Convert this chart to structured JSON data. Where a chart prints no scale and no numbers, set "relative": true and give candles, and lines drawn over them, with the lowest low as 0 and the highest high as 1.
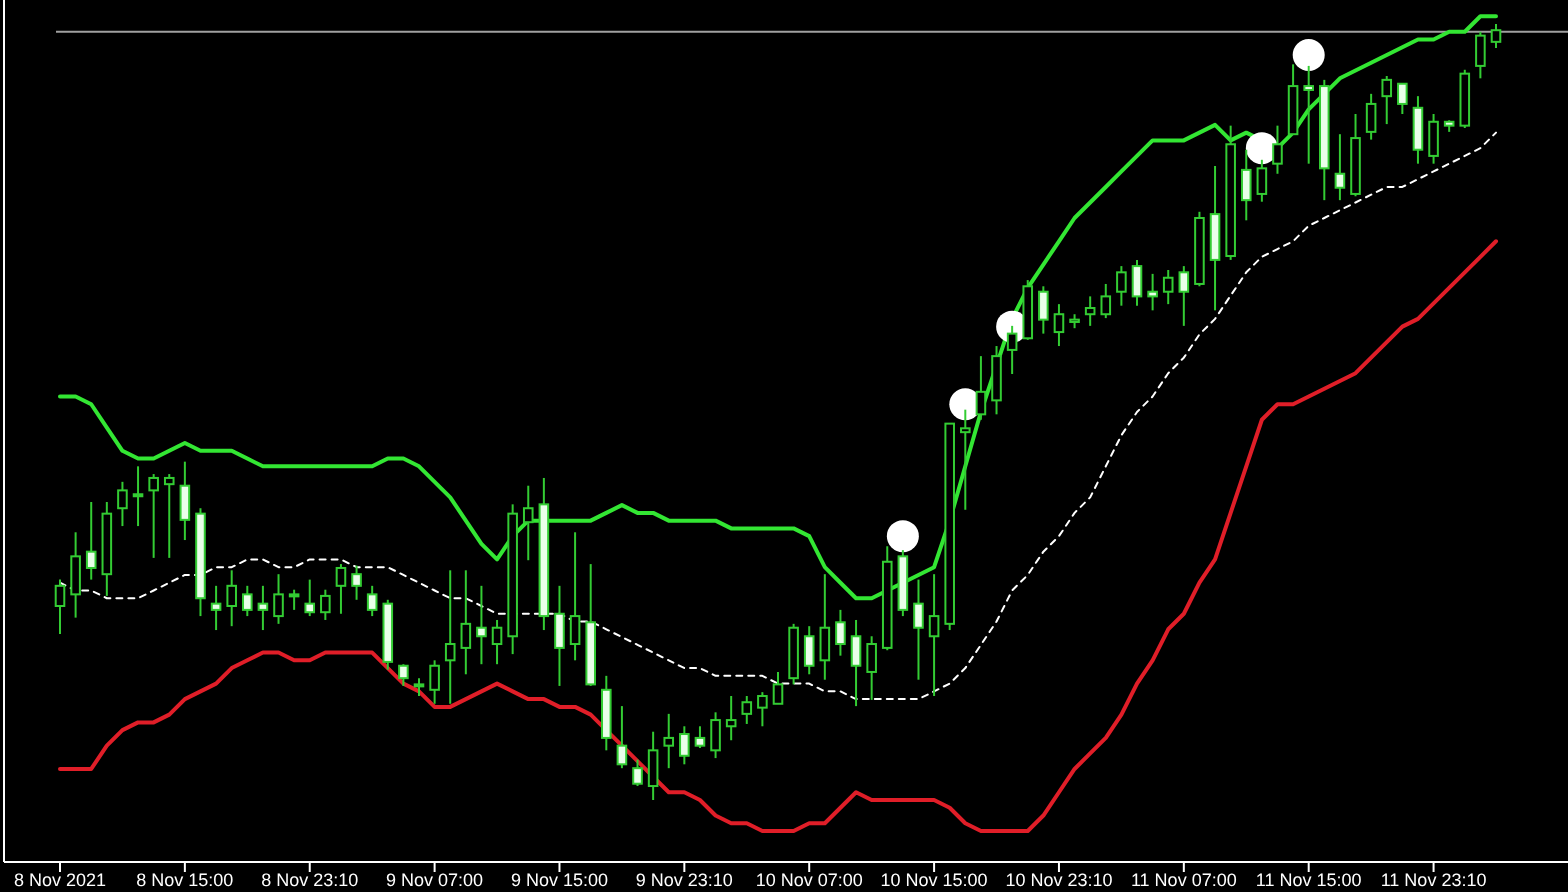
{
  "chart_data": {
    "type": "candlestick",
    "relative": true,
    "color": "#33cc33",
    "categories": [
      "8 Nov 2021",
      null,
      null,
      null,
      null,
      null,
      null,
      null,
      "8 Nov 15:00",
      null,
      null,
      null,
      null,
      null,
      null,
      null,
      "8 Nov 23:10",
      null,
      null,
      null,
      null,
      null,
      null,
      null,
      "9 Nov 07:00",
      null,
      null,
      null,
      null,
      null,
      null,
      null,
      "9 Nov 15:00",
      null,
      null,
      null,
      null,
      null,
      null,
      null,
      "9 Nov 23:10",
      null,
      null,
      null,
      null,
      null,
      null,
      null,
      "10 Nov 07:00",
      null,
      null,
      null,
      null,
      null,
      null,
      null,
      "10 Nov 15:00",
      null,
      null,
      null,
      null,
      null,
      null,
      null,
      "10 Nov 23:10",
      null,
      null,
      null,
      null,
      null,
      null,
      null,
      "11 Nov 07:00",
      null,
      null,
      null,
      null,
      null,
      null,
      null,
      "11 Nov 15:00",
      null,
      null,
      null,
      null,
      null,
      null,
      null,
      "11 Nov 23:10",
      null,
      null,
      null,
      null
    ],
    "ohlc": [
      [
        0.25,
        0.284,
        0.214,
        0.276
      ],
      [
        0.265,
        0.345,
        0.235,
        0.314
      ],
      [
        0.32,
        0.384,
        0.284,
        0.299
      ],
      [
        0.291,
        0.384,
        0.263,
        0.369
      ],
      [
        0.376,
        0.41,
        0.353,
        0.399
      ],
      [
        0.392,
        0.43,
        0.353,
        0.394
      ],
      [
        0.399,
        0.42,
        0.312,
        0.415
      ],
      [
        0.407,
        0.42,
        0.312,
        0.415
      ],
      [
        0.405,
        0.436,
        0.335,
        0.361
      ],
      [
        0.369,
        0.376,
        0.237,
        0.26
      ],
      [
        0.253,
        0.276,
        0.219,
        0.245
      ],
      [
        0.25,
        0.296,
        0.224,
        0.276
      ],
      [
        0.265,
        0.276,
        0.237,
        0.245
      ],
      [
        0.253,
        0.276,
        0.219,
        0.245
      ],
      [
        0.237,
        0.291,
        0.227,
        0.265
      ],
      [
        0.263,
        0.271,
        0.245,
        0.265
      ],
      [
        0.253,
        0.284,
        0.237,
        0.242
      ],
      [
        0.242,
        0.271,
        0.232,
        0.263
      ],
      [
        0.276,
        0.304,
        0.24,
        0.299
      ],
      [
        0.291,
        0.302,
        0.258,
        0.276
      ],
      [
        0.265,
        0.276,
        0.237,
        0.245
      ],
      [
        0.253,
        0.258,
        0.168,
        0.178
      ],
      [
        0.173,
        0.175,
        0.147,
        0.157
      ],
      [
        0.147,
        0.157,
        0.134,
        0.149
      ],
      [
        0.142,
        0.18,
        0.124,
        0.173
      ],
      [
        0.18,
        0.296,
        0.124,
        0.201
      ],
      [
        0.196,
        0.296,
        0.162,
        0.227
      ],
      [
        0.222,
        0.276,
        0.175,
        0.211
      ],
      [
        0.201,
        0.232,
        0.175,
        0.222
      ],
      [
        0.211,
        0.381,
        0.188,
        0.369
      ],
      [
        0.358,
        0.405,
        0.309,
        0.376
      ],
      [
        0.381,
        0.415,
        0.219,
        0.237
      ],
      [
        0.24,
        0.276,
        0.147,
        0.196
      ],
      [
        0.201,
        0.345,
        0.18,
        0.237
      ],
      [
        0.229,
        0.304,
        0.147,
        0.149
      ],
      [
        0.142,
        0.16,
        0.064,
        0.08
      ],
      [
        0.07,
        0.121,
        0.041,
        0.046
      ],
      [
        0.041,
        0.052,
        0.018,
        0.021
      ],
      [
        0.018,
        0.088,
        0,
        0.064
      ],
      [
        0.07,
        0.111,
        0.041,
        0.08
      ],
      [
        0.085,
        0.095,
        0.046,
        0.057
      ],
      [
        0.08,
        0.095,
        0.067,
        0.07
      ],
      [
        0.064,
        0.113,
        0.054,
        0.103
      ],
      [
        0.095,
        0.134,
        0.077,
        0.103
      ],
      [
        0.111,
        0.134,
        0.098,
        0.126
      ],
      [
        0.119,
        0.139,
        0.095,
        0.134
      ],
      [
        0.124,
        0.165,
        0.124,
        0.149
      ],
      [
        0.157,
        0.227,
        0.149,
        0.222
      ],
      [
        0.211,
        0.224,
        0.162,
        0.173
      ],
      [
        0.18,
        0.291,
        0.155,
        0.222
      ],
      [
        0.229,
        0.245,
        0.186,
        0.201
      ],
      [
        0.211,
        0.232,
        0.121,
        0.173
      ],
      [
        0.165,
        0.211,
        0.129,
        0.201
      ],
      [
        0.196,
        0.327,
        0.193,
        0.307
      ],
      [
        0.314,
        0.322,
        0.237,
        0.245
      ],
      [
        0.253,
        0.284,
        0.155,
        0.222
      ],
      [
        0.211,
        0.291,
        0.134,
        0.237
      ],
      [
        0.227,
        0.485,
        0.219,
        0.485
      ],
      [
        0.474,
        0.503,
        0.374,
        0.479
      ],
      [
        0.497,
        0.572,
        0.49,
        0.526
      ],
      [
        0.515,
        0.585,
        0.497,
        0.572
      ],
      [
        0.58,
        0.611,
        0.549,
        0.601
      ],
      [
        0.595,
        0.67,
        0.593,
        0.662
      ],
      [
        0.655,
        0.662,
        0.601,
        0.619
      ],
      [
        0.603,
        0.639,
        0.585,
        0.626
      ],
      [
        0.616,
        0.626,
        0.608,
        0.619
      ],
      [
        0.626,
        0.649,
        0.611,
        0.634
      ],
      [
        0.626,
        0.665,
        0.621,
        0.649
      ],
      [
        0.655,
        0.688,
        0.637,
        0.68
      ],
      [
        0.688,
        0.696,
        0.637,
        0.649
      ],
      [
        0.655,
        0.678,
        0.631,
        0.649
      ],
      [
        0.655,
        0.683,
        0.639,
        0.673
      ],
      [
        0.68,
        0.688,
        0.611,
        0.655
      ],
      [
        0.665,
        0.758,
        0.662,
        0.75
      ],
      [
        0.755,
        0.817,
        0.631,
        0.696
      ],
      [
        0.701,
        0.869,
        0.696,
        0.845
      ],
      [
        0.812,
        0.838,
        0.747,
        0.773
      ],
      [
        0.781,
        0.825,
        0.771,
        0.814
      ],
      [
        0.82,
        0.869,
        0.807,
        0.845
      ],
      [
        0.858,
        0.948,
        0.858,
        0.92
      ],
      [
        0.92,
        0.946,
        0.82,
        0.915
      ],
      [
        0.92,
        0.928,
        0.773,
        0.814
      ],
      [
        0.807,
        0.858,
        0.773,
        0.789
      ],
      [
        0.781,
        0.884,
        0.778,
        0.853
      ],
      [
        0.861,
        0.91,
        0.851,
        0.897
      ],
      [
        0.907,
        0.933,
        0.871,
        0.928
      ],
      [
        0.923,
        0.923,
        0.884,
        0.897
      ],
      [
        0.892,
        0.907,
        0.82,
        0.838
      ],
      [
        0.83,
        0.884,
        0.82,
        0.874
      ],
      [
        0.874,
        0.876,
        0.861,
        0.869
      ],
      [
        0.869,
        0.941,
        0.866,
        0.936
      ],
      [
        0.946,
        0.99,
        0.93,
        0.985
      ],
      [
        0.977,
        1,
        0.969,
        0.992
      ]
    ],
    "series": [
      {
        "type": "line",
        "color": "#33e633",
        "line_style": "solid",
        "values": [
          0.52,
          0.52,
          0.51,
          0.48,
          0.45,
          0.44,
          0.44,
          0.45,
          0.46,
          0.45,
          0.45,
          0.45,
          0.44,
          0.43,
          0.43,
          0.43,
          0.43,
          0.43,
          0.43,
          0.43,
          0.43,
          0.44,
          0.44,
          0.43,
          0.41,
          0.39,
          0.36,
          0.33,
          0.31,
          0.34,
          0.36,
          0.36,
          0.36,
          0.36,
          0.36,
          0.37,
          0.38,
          0.37,
          0.37,
          0.36,
          0.36,
          0.36,
          0.36,
          0.35,
          0.35,
          0.35,
          0.35,
          0.35,
          0.34,
          0.3,
          0.28,
          0.26,
          0.26,
          0.27,
          0.28,
          0.29,
          0.3,
          0.36,
          0.43,
          0.5,
          0.56,
          0.62,
          0.66,
          0.69,
          0.72,
          0.75,
          0.77,
          0.79,
          0.81,
          0.83,
          0.85,
          0.85,
          0.85,
          0.86,
          0.87,
          0.85,
          0.86,
          0.85,
          0.84,
          0.86,
          0.89,
          0.91,
          0.93,
          0.94,
          0.95,
          0.96,
          0.97,
          0.98,
          0.98,
          0.99,
          0.99,
          1.01,
          1.01
        ]
      },
      {
        "type": "line",
        "color": "#ffffff",
        "line_style": "dashed",
        "values": [
          0.28,
          0.27,
          0.27,
          0.26,
          0.26,
          0.26,
          0.27,
          0.28,
          0.29,
          0.29,
          0.3,
          0.3,
          0.31,
          0.31,
          0.3,
          0.3,
          0.31,
          0.31,
          0.31,
          0.3,
          0.3,
          0.3,
          0.29,
          0.28,
          0.27,
          0.26,
          0.26,
          0.25,
          0.24,
          0.24,
          0.24,
          0.24,
          0.24,
          0.23,
          0.23,
          0.22,
          0.21,
          0.2,
          0.19,
          0.18,
          0.17,
          0.17,
          0.16,
          0.16,
          0.16,
          0.16,
          0.15,
          0.15,
          0.15,
          0.14,
          0.14,
          0.13,
          0.13,
          0.13,
          0.13,
          0.13,
          0.14,
          0.15,
          0.17,
          0.2,
          0.23,
          0.27,
          0.29,
          0.32,
          0.34,
          0.37,
          0.39,
          0.43,
          0.47,
          0.5,
          0.52,
          0.55,
          0.57,
          0.6,
          0.62,
          0.65,
          0.68,
          0.7,
          0.71,
          0.72,
          0.74,
          0.75,
          0.76,
          0.77,
          0.78,
          0.79,
          0.79,
          0.8,
          0.81,
          0.82,
          0.83,
          0.84,
          0.86
        ]
      },
      {
        "type": "line",
        "color": "#e01e28",
        "line_style": "solid",
        "values": [
          0.04,
          0.04,
          0.04,
          0.07,
          0.09,
          0.1,
          0.1,
          0.11,
          0.13,
          0.14,
          0.15,
          0.17,
          0.18,
          0.19,
          0.19,
          0.18,
          0.18,
          0.19,
          0.19,
          0.19,
          0.19,
          0.17,
          0.15,
          0.14,
          0.12,
          0.12,
          0.13,
          0.14,
          0.15,
          0.14,
          0.13,
          0.13,
          0.12,
          0.12,
          0.11,
          0.09,
          0.07,
          0.05,
          0.03,
          0.01,
          0.01,
          0,
          -0.02,
          -0.03,
          -0.03,
          -0.04,
          -0.04,
          -0.04,
          -0.03,
          -0.03,
          -0.01,
          0.01,
          0,
          0,
          0,
          0,
          0,
          -0.01,
          -0.03,
          -0.04,
          -0.04,
          -0.04,
          -0.04,
          -0.02,
          0.01,
          0.04,
          0.06,
          0.08,
          0.11,
          0.15,
          0.18,
          0.22,
          0.24,
          0.28,
          0.31,
          0.37,
          0.43,
          0.49,
          0.51,
          0.51,
          0.52,
          0.53,
          0.54,
          0.55,
          0.57,
          0.59,
          0.61,
          0.62,
          0.64,
          0.66,
          0.68,
          0.7,
          0.72
        ]
      },
      {
        "type": "scatter",
        "color": "#ffffff",
        "marker": "circle",
        "values": [
          null,
          null,
          null,
          null,
          null,
          null,
          null,
          null,
          null,
          null,
          null,
          null,
          null,
          null,
          null,
          null,
          null,
          null,
          null,
          null,
          null,
          null,
          null,
          null,
          null,
          null,
          null,
          null,
          null,
          null,
          null,
          null,
          null,
          null,
          null,
          null,
          null,
          null,
          null,
          null,
          null,
          null,
          null,
          null,
          null,
          null,
          null,
          null,
          null,
          null,
          null,
          null,
          null,
          null,
          0.34,
          null,
          null,
          null,
          0.51,
          null,
          null,
          0.61,
          null,
          null,
          null,
          null,
          null,
          null,
          null,
          null,
          null,
          null,
          null,
          null,
          null,
          null,
          null,
          0.84,
          null,
          null,
          0.96,
          null,
          null,
          null,
          null,
          null,
          null,
          null,
          null,
          null,
          null,
          null,
          null
        ]
      }
    ],
    "ref_lines": [
      {
        "axis": "y",
        "value": 0.99,
        "color": "#a0a0a0",
        "line_style": "solid"
      }
    ]
  }
}
